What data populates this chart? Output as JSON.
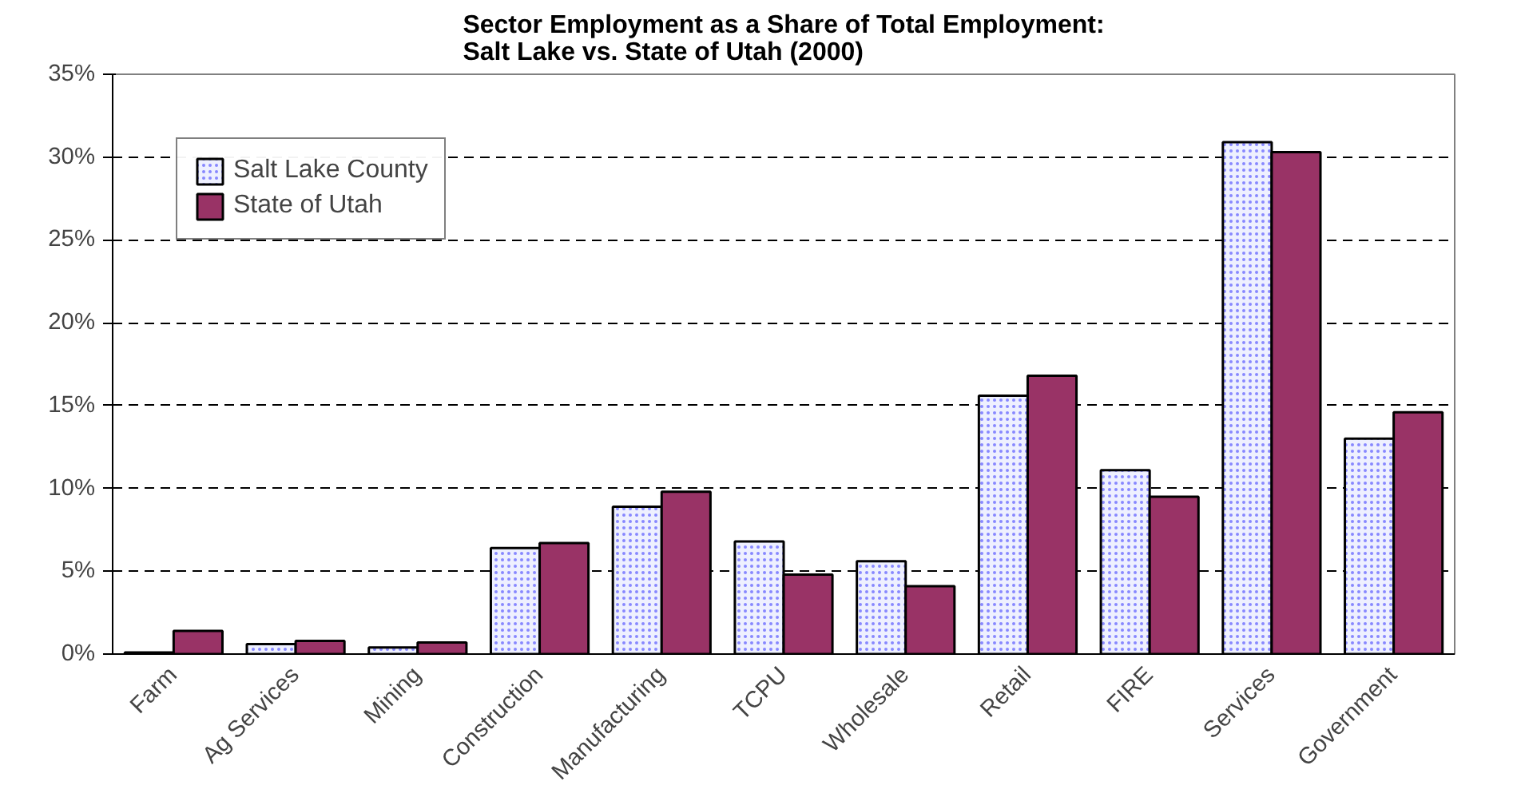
{
  "chart_data": {
    "type": "bar",
    "title": "Sector Employment as a Share of Total Employment:\nSalt Lake vs. State of Utah (2000)",
    "categories": [
      "Farm",
      "Ag Services",
      "Mining",
      "Construction",
      "Manufacturing",
      "TCPU",
      "Wholesale",
      "Retail",
      "FIRE",
      "Services",
      "Government"
    ],
    "series": [
      {
        "name": "Salt Lake County",
        "color": "#eef0ff",
        "values": [
          0.1,
          0.6,
          0.4,
          6.4,
          8.9,
          6.8,
          5.6,
          15.6,
          11.1,
          30.9,
          13.0
        ]
      },
      {
        "name": "State of Utah",
        "color": "#993366",
        "values": [
          1.4,
          0.8,
          0.7,
          6.7,
          9.8,
          4.8,
          4.1,
          16.8,
          9.5,
          30.3,
          14.6
        ]
      }
    ],
    "ylim": [
      0,
      35
    ],
    "yticks": [
      {
        "value": 0,
        "label": "0%"
      },
      {
        "value": 5,
        "label": "5%"
      },
      {
        "value": 10,
        "label": "10%"
      },
      {
        "value": 15,
        "label": "15%"
      },
      {
        "value": 20,
        "label": "20%"
      },
      {
        "value": 25,
        "label": "25%"
      },
      {
        "value": 30,
        "label": "30%"
      },
      {
        "value": 35,
        "label": "35%"
      }
    ],
    "grid": "y",
    "legend": "top left"
  }
}
